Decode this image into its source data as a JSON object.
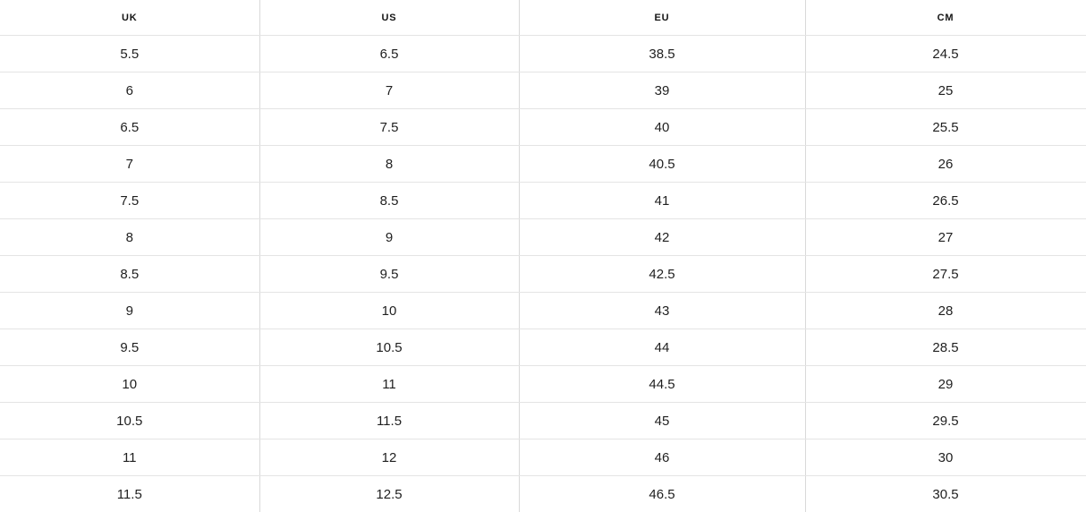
{
  "table": {
    "name": "shoe-size-conversion-chart",
    "columns": [
      {
        "key": "uk",
        "label": "UK"
      },
      {
        "key": "us",
        "label": "US"
      },
      {
        "key": "eu",
        "label": "EU"
      },
      {
        "key": "cm",
        "label": "CM"
      }
    ],
    "rows": [
      [
        "5.5",
        "6.5",
        "38.5",
        "24.5"
      ],
      [
        "6",
        "7",
        "39",
        "25"
      ],
      [
        "6.5",
        "7.5",
        "40",
        "25.5"
      ],
      [
        "7",
        "8",
        "40.5",
        "26"
      ],
      [
        "7.5",
        "8.5",
        "41",
        "26.5"
      ],
      [
        "8",
        "9",
        "42",
        "27"
      ],
      [
        "8.5",
        "9.5",
        "42.5",
        "27.5"
      ],
      [
        "9",
        "10",
        "43",
        "28"
      ],
      [
        "9.5",
        "10.5",
        "44",
        "28.5"
      ],
      [
        "10",
        "11",
        "44.5",
        "29"
      ],
      [
        "10.5",
        "11.5",
        "45",
        "29.5"
      ],
      [
        "11",
        "12",
        "46",
        "30"
      ],
      [
        "11.5",
        "12.5",
        "46.5",
        "30.5"
      ]
    ],
    "colors": {
      "background": "#ffffff",
      "vertical_border": "#d9d9d9",
      "horizontal_border": "#e4e4e4",
      "header_text": "#141414",
      "cell_text": "#1f1f1f"
    }
  }
}
